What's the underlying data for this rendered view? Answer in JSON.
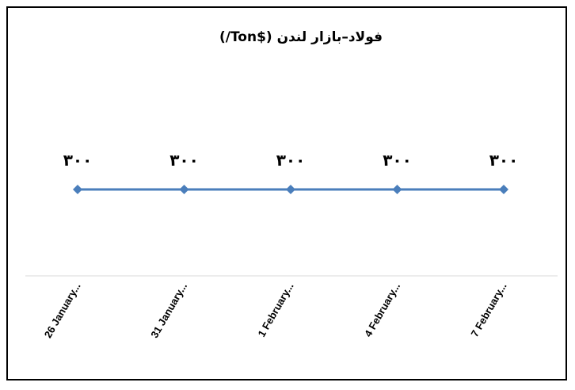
{
  "chart_data": {
    "type": "line",
    "title": "فولاد–بازار لندن ($Ton/)",
    "xlabel": "",
    "ylabel": "",
    "categories": [
      "26 January...",
      "31 January...",
      "1 February...",
      "4 February...",
      "7 February..."
    ],
    "series": [
      {
        "values": [
          300,
          300,
          300,
          300,
          300
        ],
        "data_labels": [
          "۳۰۰",
          "۳۰۰",
          "۳۰۰",
          "۳۰۰",
          "۳۰۰"
        ]
      }
    ],
    "grid": false,
    "legend": "none"
  },
  "colors": {
    "line": "#4a7ebb",
    "marker": "#4a7ebb",
    "axis": "#d9d9d9",
    "frame": "#000000"
  }
}
